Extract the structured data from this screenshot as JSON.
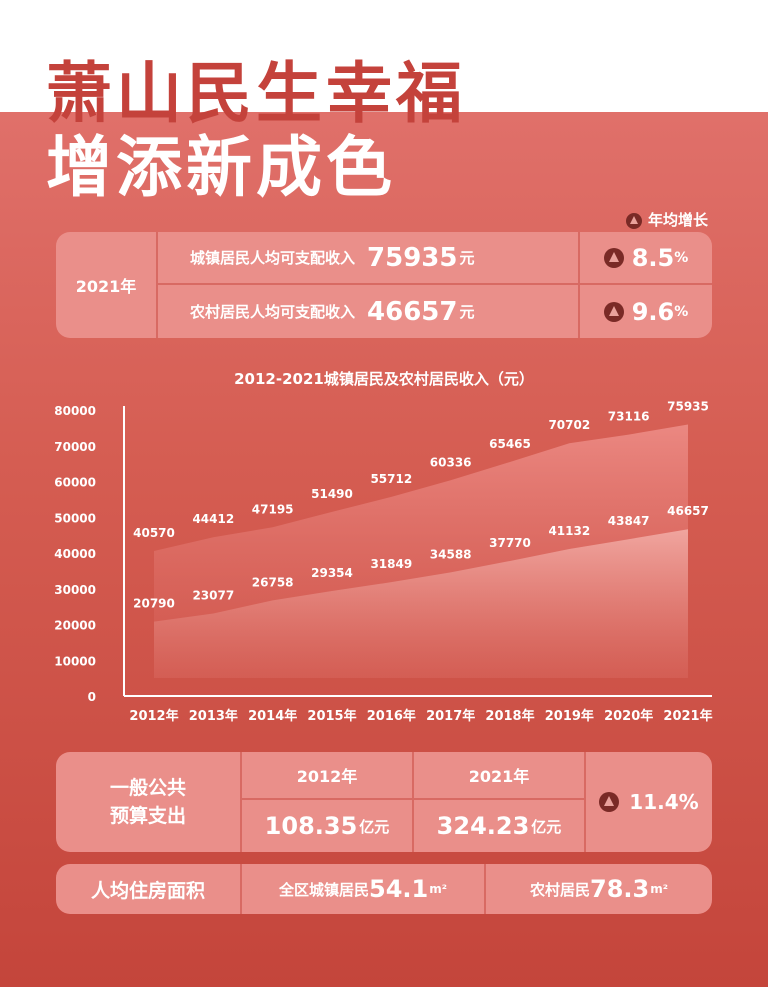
{
  "title_line1": "萧山民生幸福",
  "title_line2": "增添新成色",
  "legend_note": "年均增长",
  "income_panel": {
    "year": "2021年",
    "rows": [
      {
        "label": "城镇居民人均可支配收入",
        "value": "75935",
        "unit": "元",
        "growth": "8.5",
        "growth_unit": "%"
      },
      {
        "label": "农村居民人均可支配收入",
        "value": "46657",
        "unit": "元",
        "growth": "9.6",
        "growth_unit": "%"
      }
    ]
  },
  "chart_data": {
    "type": "area",
    "title": "2012-2021城镇居民及农村居民收入（元）",
    "categories": [
      "2012年",
      "2013年",
      "2014年",
      "2015年",
      "2016年",
      "2017年",
      "2018年",
      "2019年",
      "2020年",
      "2021年"
    ],
    "series": [
      {
        "name": "城镇居民",
        "values": [
          40570,
          44412,
          47195,
          51490,
          55712,
          60336,
          65465,
          70702,
          73116,
          75935
        ]
      },
      {
        "name": "农村居民",
        "values": [
          20790,
          23077,
          26758,
          29354,
          31849,
          34588,
          37770,
          41132,
          43847,
          46657
        ]
      }
    ],
    "yticks": [
      0,
      10000,
      20000,
      30000,
      40000,
      50000,
      60000,
      70000,
      80000
    ],
    "ylim": [
      0,
      80000
    ],
    "xlabel": "",
    "ylabel": ""
  },
  "budget_panel": {
    "label_line1": "一般公共",
    "label_line2": "预算支出",
    "col1_year": "2012年",
    "col1_value": "108.35",
    "col1_unit": "亿元",
    "col2_year": "2021年",
    "col2_value": "324.23",
    "col2_unit": "亿元",
    "growth": "11.4%"
  },
  "housing_panel": {
    "label": "人均住房面积",
    "urban_label": "全区城镇居民",
    "urban_value": "54.1",
    "urban_unit": "m²",
    "rural_label": "农村居民",
    "rural_value": "78.3",
    "rural_unit": "m²"
  },
  "colors": {
    "accent_red": "#c4423b",
    "panel": "#ea8f8a",
    "icon_dark": "#7a2a26"
  }
}
